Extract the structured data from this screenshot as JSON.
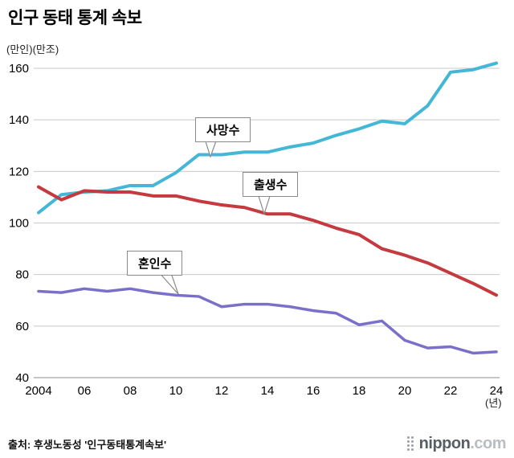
{
  "page": {
    "title": "인구 동태 통계 속보",
    "unit_label": "(만인)(만조)",
    "x_axis_unit": "(년)",
    "source": "출처: 후생노동성 '인구동태통계속보'"
  },
  "logo": {
    "name": "nippon",
    "tld": ".com"
  },
  "chart_data": {
    "type": "line",
    "title": "인구 동태 통계 속보",
    "ylabel": "(만인)(만조)",
    "xlabel": "(년)",
    "ylim": [
      40,
      160
    ],
    "y_ticks": [
      40,
      60,
      80,
      100,
      120,
      140,
      160
    ],
    "grid": true,
    "legend_position": "inline-callouts",
    "x": [
      2004,
      2005,
      2006,
      2007,
      2008,
      2009,
      2010,
      2011,
      2012,
      2013,
      2014,
      2015,
      2016,
      2017,
      2018,
      2019,
      2020,
      2021,
      2022,
      2023,
      2024
    ],
    "x_tick_years": [
      2004,
      2006,
      2008,
      2010,
      2012,
      2014,
      2016,
      2018,
      2020,
      2022,
      2024
    ],
    "x_tick_labels": [
      "2004",
      "06",
      "08",
      "10",
      "12",
      "14",
      "16",
      "18",
      "20",
      "22",
      "24"
    ],
    "series": [
      {
        "key": "deaths",
        "name": "사망수",
        "color": "#44b6d6",
        "values": [
          104,
          111,
          112,
          112.5,
          114.5,
          114.5,
          119.5,
          126.5,
          126.5,
          127.5,
          127.5,
          129.5,
          131,
          134,
          136.5,
          139.5,
          138.5,
          145.5,
          158.5,
          159.5,
          162
        ]
      },
      {
        "key": "births",
        "name": "출생수",
        "color": "#c43a3f",
        "values": [
          114,
          109,
          112.5,
          112,
          112,
          110.5,
          110.5,
          108.5,
          107,
          106,
          103.5,
          103.5,
          101,
          98,
          95.5,
          90,
          87.5,
          84.5,
          80.5,
          76.5,
          72
        ]
      },
      {
        "key": "marriages",
        "name": "혼인수",
        "color": "#7a70c9",
        "values": [
          73.5,
          73,
          74.5,
          73.5,
          74.5,
          73,
          72,
          71.5,
          67.5,
          68.5,
          68.5,
          67.5,
          66,
          65,
          60.5,
          62,
          54.5,
          51.5,
          52,
          49.5,
          50
        ]
      }
    ]
  }
}
